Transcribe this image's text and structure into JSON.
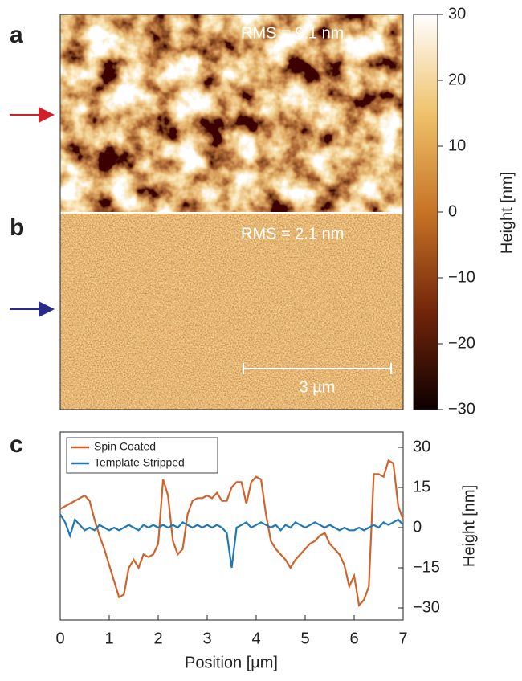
{
  "labels": {
    "a": "a",
    "b": "b",
    "c": "c"
  },
  "images": {
    "rms_a": "RMS = 9.1 nm",
    "rms_b": "RMS = 2.1 nm",
    "scale_bar": "3 µm"
  },
  "colorbar": {
    "label": "Height [nm]",
    "lim": [
      -30,
      30
    ],
    "ticks": [
      {
        "value": -30,
        "label": "−30"
      },
      {
        "value": -20,
        "label": "−20"
      },
      {
        "value": -10,
        "label": "−10"
      },
      0,
      10,
      20,
      30
    ]
  },
  "chart_data": {
    "type": "line",
    "xlabel": "Position [µm]",
    "ylabel": "Height [nm]",
    "x": [
      0,
      0.1,
      0.2,
      0.3,
      0.4,
      0.5,
      0.6,
      0.7,
      0.8,
      0.9,
      1,
      1.1,
      1.2,
      1.3,
      1.4,
      1.5,
      1.6,
      1.7,
      1.8,
      1.9,
      2,
      2.1,
      2.2,
      2.3,
      2.4,
      2.5,
      2.6,
      2.7,
      2.8,
      2.9,
      3,
      3.1,
      3.2,
      3.3,
      3.4,
      3.5,
      3.6,
      3.7,
      3.8,
      3.9,
      4,
      4.1,
      4.2,
      4.3,
      4.4,
      4.5,
      4.6,
      4.7,
      4.8,
      4.9,
      5,
      5.1,
      5.2,
      5.3,
      5.4,
      5.5,
      5.6,
      5.7,
      5.8,
      5.9,
      6,
      6.1,
      6.2,
      6.3,
      6.4,
      6.5,
      6.6,
      6.7,
      6.8,
      6.9,
      7
    ],
    "series": [
      {
        "name": "Spin Coated",
        "color": "#d0622c",
        "values": [
          7,
          8,
          9,
          10,
          11,
          12,
          10,
          3,
          -3,
          -8,
          -14,
          -20,
          -26,
          -25,
          -15,
          -12,
          -15,
          -10,
          -11,
          -10,
          -6,
          18,
          12,
          -5,
          -10,
          -8,
          5,
          10,
          11,
          11,
          12,
          11,
          13,
          10,
          10,
          15,
          17,
          17,
          9,
          17,
          19,
          18,
          5,
          -5,
          -8,
          -10,
          -12,
          -15,
          -12,
          -10,
          -8,
          -6,
          -5,
          -3,
          -2,
          -6,
          -8,
          -10,
          -14,
          -22,
          -18,
          -29,
          -27,
          -22,
          20,
          20,
          19,
          25,
          24,
          8,
          3
        ]
      },
      {
        "name": "Template Stripped",
        "color": "#1f77b4",
        "values": [
          5,
          2,
          -3,
          3,
          1,
          -1,
          0,
          -1,
          1,
          0,
          -1,
          0,
          -1,
          0,
          1,
          0,
          -1,
          1,
          0,
          1,
          0,
          1,
          0,
          1,
          0,
          2,
          1,
          0,
          1,
          0,
          1,
          0,
          1,
          0,
          -2,
          -15,
          0,
          1,
          2,
          0,
          1,
          2,
          1,
          0,
          1,
          -1,
          1,
          0,
          2,
          1,
          0,
          1,
          2,
          1,
          0,
          1,
          0,
          -1,
          0,
          -1,
          -1,
          0,
          -1,
          0,
          1,
          0,
          2,
          1,
          2,
          3,
          1
        ]
      }
    ],
    "xlim": [
      0,
      7
    ],
    "xticks": [
      0,
      1,
      2,
      3,
      4,
      5,
      6,
      7
    ],
    "ylim": [
      -34.5,
      35.7
    ],
    "yticks": [
      {
        "value": -30,
        "label": "−30"
      },
      {
        "value": -15,
        "label": "−15"
      },
      0,
      15,
      30
    ],
    "legend": "upper left"
  }
}
